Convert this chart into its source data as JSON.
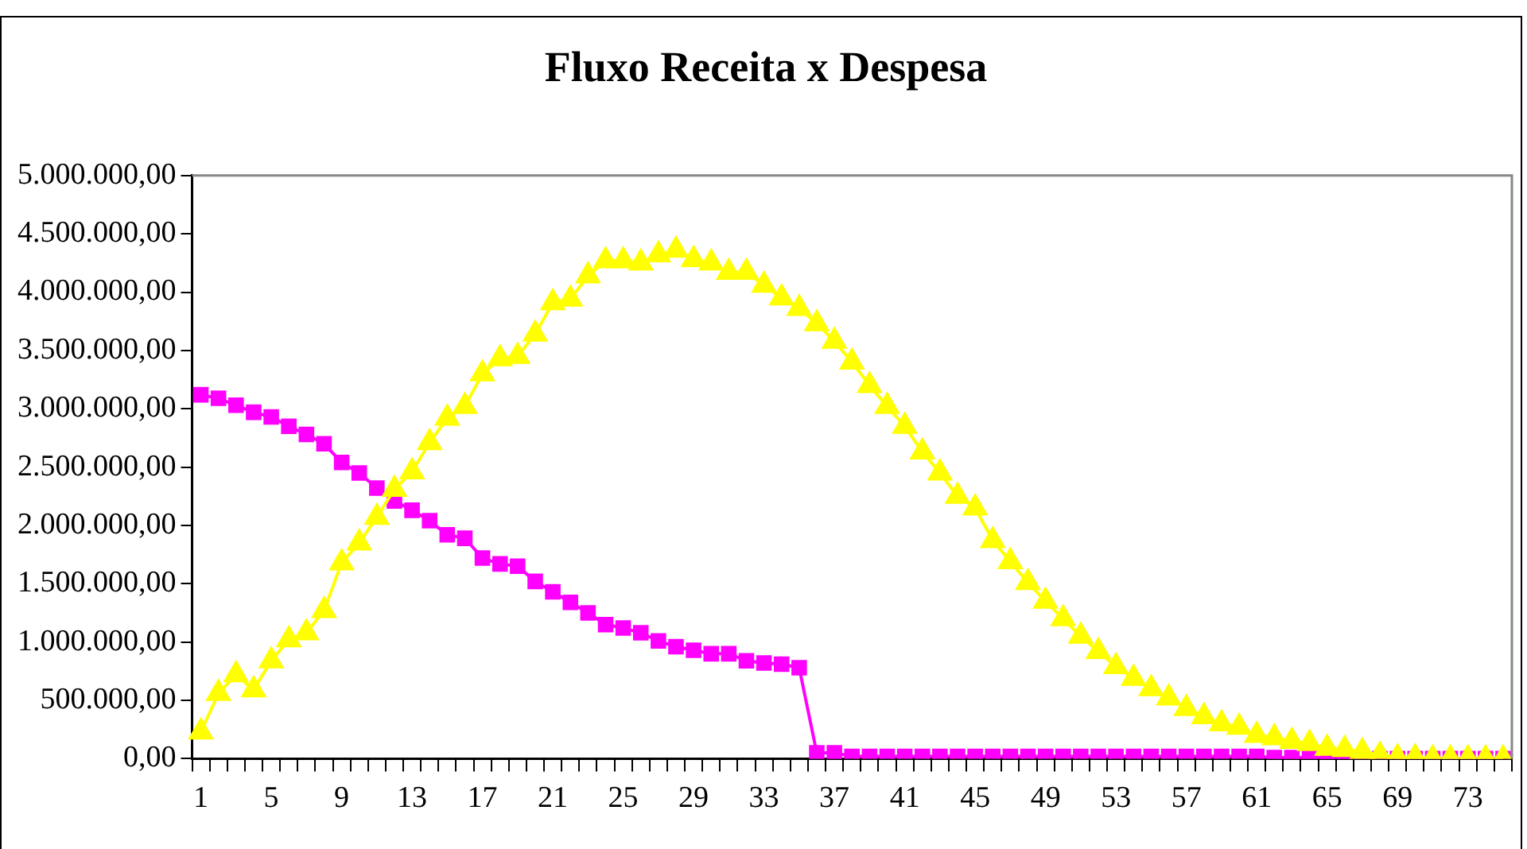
{
  "chart_data": {
    "type": "line",
    "title": "Fluxo Receita x Despesa",
    "categories": [
      "1",
      null,
      null,
      null,
      "5",
      null,
      null,
      null,
      "9",
      null,
      null,
      null,
      "13",
      null,
      null,
      null,
      "17",
      null,
      null,
      null,
      "21",
      null,
      null,
      null,
      "25",
      null,
      null,
      null,
      "29",
      null,
      null,
      null,
      "33",
      null,
      null,
      null,
      "37",
      null,
      null,
      null,
      "41",
      null,
      null,
      null,
      "45",
      null,
      null,
      null,
      "49",
      null,
      null,
      null,
      "53",
      null,
      null,
      null,
      "57",
      null,
      null,
      null,
      "61",
      null,
      null,
      null,
      "65",
      null,
      null,
      null,
      "69",
      null,
      null,
      null,
      "73",
      null,
      null
    ],
    "series": [
      {
        "color": "#ff00ff",
        "marker": "square",
        "values": [
          3120000,
          3090000,
          3030000,
          2970000,
          2930000,
          2850000,
          2780000,
          2700000,
          2540000,
          2450000,
          2320000,
          2210000,
          2130000,
          2040000,
          1920000,
          1890000,
          1720000,
          1670000,
          1650000,
          1520000,
          1430000,
          1340000,
          1250000,
          1150000,
          1120000,
          1080000,
          1010000,
          960000,
          930000,
          900000,
          900000,
          840000,
          820000,
          810000,
          780000,
          50000,
          50000,
          20000,
          20000,
          20000,
          20000,
          20000,
          20000,
          20000,
          20000,
          20000,
          20000,
          20000,
          20000,
          20000,
          20000,
          20000,
          20000,
          20000,
          20000,
          20000,
          20000,
          20000,
          20000,
          20000,
          20000,
          10000,
          10000,
          10000,
          10000,
          10000,
          0,
          0,
          0,
          0,
          0,
          0,
          0,
          0,
          0
        ]
      },
      {
        "color": "#ffff00",
        "marker": "triangle",
        "values": [
          230000,
          560000,
          720000,
          590000,
          840000,
          1020000,
          1080000,
          1270000,
          1680000,
          1850000,
          2070000,
          2310000,
          2460000,
          2710000,
          2920000,
          3020000,
          3300000,
          3430000,
          3450000,
          3640000,
          3910000,
          3940000,
          4140000,
          4270000,
          4270000,
          4250000,
          4320000,
          4360000,
          4280000,
          4250000,
          4170000,
          4170000,
          4060000,
          3950000,
          3860000,
          3730000,
          3580000,
          3400000,
          3200000,
          3020000,
          2850000,
          2630000,
          2450000,
          2250000,
          2150000,
          1870000,
          1690000,
          1510000,
          1350000,
          1200000,
          1050000,
          920000,
          790000,
          690000,
          600000,
          520000,
          430000,
          360000,
          300000,
          270000,
          200000,
          180000,
          150000,
          130000,
          90000,
          80000,
          60000,
          30000,
          10000,
          10000,
          0,
          0,
          0,
          0,
          0
        ]
      }
    ],
    "ylim": [
      0,
      5000000
    ],
    "yticks": [
      {
        "value": 0,
        "label": "0,00"
      },
      {
        "value": 500000,
        "label": "500.000,00"
      },
      {
        "value": 1000000,
        "label": "1.000.000,00"
      },
      {
        "value": 1500000,
        "label": "1.500.000,00"
      },
      {
        "value": 2000000,
        "label": "2.000.000,00"
      },
      {
        "value": 2500000,
        "label": "2.500.000,00"
      },
      {
        "value": 3000000,
        "label": "3.000.000,00"
      },
      {
        "value": 3500000,
        "label": "3.500.000,00"
      },
      {
        "value": 4000000,
        "label": "4.000.000,00"
      },
      {
        "value": 4500000,
        "label": "4.500.000,00"
      },
      {
        "value": 5000000,
        "label": "5.000.000,00"
      }
    ],
    "grid": false,
    "legend": false
  }
}
